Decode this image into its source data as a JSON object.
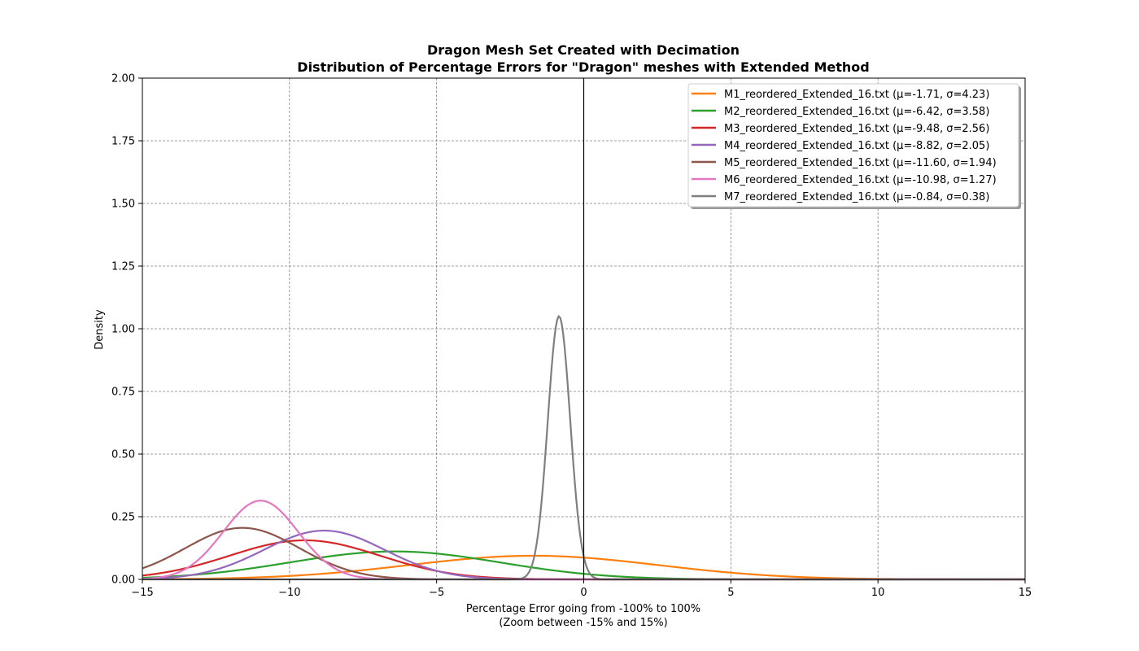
{
  "chart_data": {
    "type": "line",
    "title": "Dragon Mesh Set Created with Decimation",
    "subtitle": "Distribution of Percentage Errors for \"Dragon\" meshes with Extended Method",
    "xlabel": "Percentage Error going from -100% to 100%",
    "xlabel2": "(Zoom between -15% and 15%)",
    "ylabel": "Density",
    "xlim": [
      -15,
      15
    ],
    "ylim": [
      0,
      2
    ],
    "xticks": [
      -15,
      -10,
      -5,
      0,
      5,
      10,
      15
    ],
    "xtick_labels": [
      "−15",
      "−10",
      "−5",
      "0",
      "5",
      "10",
      "15"
    ],
    "yticks": [
      0,
      0.25,
      0.5,
      0.75,
      1.0,
      1.25,
      1.5,
      1.75,
      2.0
    ],
    "ytick_labels": [
      "0.00",
      "0.25",
      "0.50",
      "0.75",
      "1.00",
      "1.25",
      "1.50",
      "1.75",
      "2.00"
    ],
    "grid": true,
    "vertical_reference_line_x": 0,
    "legend_position": "top-right",
    "series": [
      {
        "name": "M1_reordered_Extended_16.txt (μ=-1.71, σ=4.23)",
        "mu": -1.71,
        "sigma": 4.23,
        "color": "#ff7f0e"
      },
      {
        "name": "M2_reordered_Extended_16.txt (μ=-6.42, σ=3.58)",
        "mu": -6.42,
        "sigma": 3.58,
        "color": "#2ca02c"
      },
      {
        "name": "M3_reordered_Extended_16.txt (μ=-9.48, σ=2.56)",
        "mu": -9.48,
        "sigma": 2.56,
        "color": "#d62728"
      },
      {
        "name": "M4_reordered_Extended_16.txt (μ=-8.82, σ=2.05)",
        "mu": -8.82,
        "sigma": 2.05,
        "color": "#9467bd"
      },
      {
        "name": "M5_reordered_Extended_16.txt (μ=-11.60, σ=1.94)",
        "mu": -11.6,
        "sigma": 1.94,
        "color": "#8c564b"
      },
      {
        "name": "M6_reordered_Extended_16.txt (μ=-10.98, σ=1.27)",
        "mu": -10.98,
        "sigma": 1.27,
        "color": "#e377c2"
      },
      {
        "name": "M7_reordered_Extended_16.txt (μ=-0.84, σ=0.38)",
        "mu": -0.84,
        "sigma": 0.38,
        "color": "#7f7f7f"
      }
    ]
  }
}
